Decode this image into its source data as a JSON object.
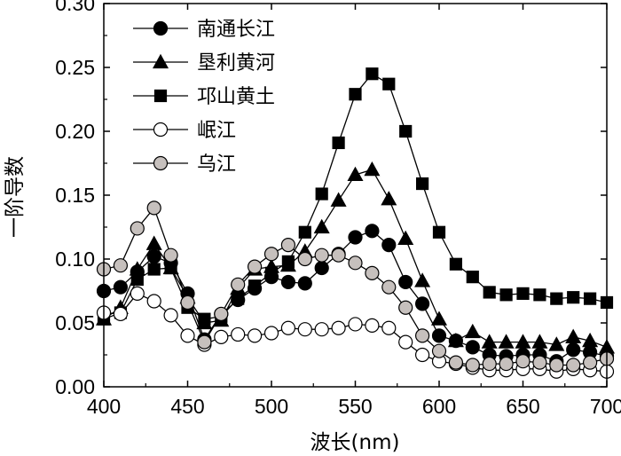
{
  "chart_data": {
    "type": "line",
    "xlabel": "波长(nm)",
    "ylabel": "一阶导数",
    "xlim": [
      400,
      700
    ],
    "ylim": [
      0.0,
      0.3
    ],
    "xticks": [
      "400",
      "450",
      "500",
      "550",
      "600",
      "650",
      "700"
    ],
    "yticks": [
      "0.00",
      "0.05",
      "0.10",
      "0.15",
      "0.20",
      "0.25",
      "0.30"
    ],
    "grid": false,
    "legend_position": "top-left",
    "x": [
      400,
      410,
      420,
      430,
      440,
      450,
      460,
      470,
      480,
      490,
      500,
      510,
      520,
      530,
      540,
      550,
      560,
      570,
      580,
      590,
      600,
      610,
      620,
      630,
      640,
      650,
      660,
      670,
      680,
      690,
      700
    ],
    "series": [
      {
        "name": "南通长江",
        "marker": "circle",
        "fill": "#000000",
        "values": [
          0.075,
          0.078,
          0.09,
          0.102,
          0.097,
          0.073,
          0.037,
          0.057,
          0.068,
          0.077,
          0.086,
          0.082,
          0.081,
          0.093,
          0.104,
          0.117,
          0.122,
          0.111,
          0.082,
          0.065,
          0.04,
          0.036,
          0.031,
          0.025,
          0.024,
          0.025,
          0.025,
          0.02,
          0.029,
          0.027,
          0.024
        ]
      },
      {
        "name": "垦利黄河",
        "marker": "triangle",
        "fill": "#000000",
        "values": [
          0.053,
          0.062,
          0.092,
          0.112,
          0.093,
          0.07,
          0.05,
          0.052,
          0.077,
          0.092,
          0.094,
          0.095,
          0.106,
          0.125,
          0.146,
          0.166,
          0.17,
          0.147,
          0.116,
          0.083,
          0.053,
          0.036,
          0.043,
          0.035,
          0.035,
          0.035,
          0.035,
          0.033,
          0.039,
          0.036,
          0.031
        ]
      },
      {
        "name": "邛山黄土",
        "marker": "square",
        "fill": "#000000",
        "values": [
          0.053,
          0.058,
          0.084,
          0.092,
          0.093,
          0.062,
          0.053,
          0.055,
          0.069,
          0.079,
          0.089,
          0.098,
          0.121,
          0.151,
          0.191,
          0.229,
          0.245,
          0.237,
          0.2,
          0.159,
          0.121,
          0.096,
          0.086,
          0.074,
          0.072,
          0.073,
          0.072,
          0.069,
          0.07,
          0.069,
          0.066
        ]
      },
      {
        "name": "岷江",
        "marker": "circle",
        "fill": "#ffffff",
        "values": [
          0.058,
          0.057,
          0.073,
          0.067,
          0.056,
          0.04,
          0.033,
          0.039,
          0.041,
          0.04,
          0.042,
          0.046,
          0.045,
          0.045,
          0.046,
          0.049,
          0.048,
          0.046,
          0.035,
          0.025,
          0.02,
          0.018,
          0.015,
          0.013,
          0.013,
          0.014,
          0.014,
          0.012,
          0.014,
          0.013,
          0.012
        ]
      },
      {
        "name": "乌江",
        "marker": "circle",
        "fill": "#c6c0bd",
        "values": [
          0.092,
          0.095,
          0.124,
          0.14,
          0.103,
          0.066,
          0.035,
          0.057,
          0.08,
          0.094,
          0.104,
          0.111,
          0.1,
          0.103,
          0.103,
          0.097,
          0.089,
          0.078,
          0.062,
          0.04,
          0.028,
          0.019,
          0.017,
          0.018,
          0.018,
          0.02,
          0.019,
          0.017,
          0.017,
          0.019,
          0.022
        ]
      }
    ]
  }
}
